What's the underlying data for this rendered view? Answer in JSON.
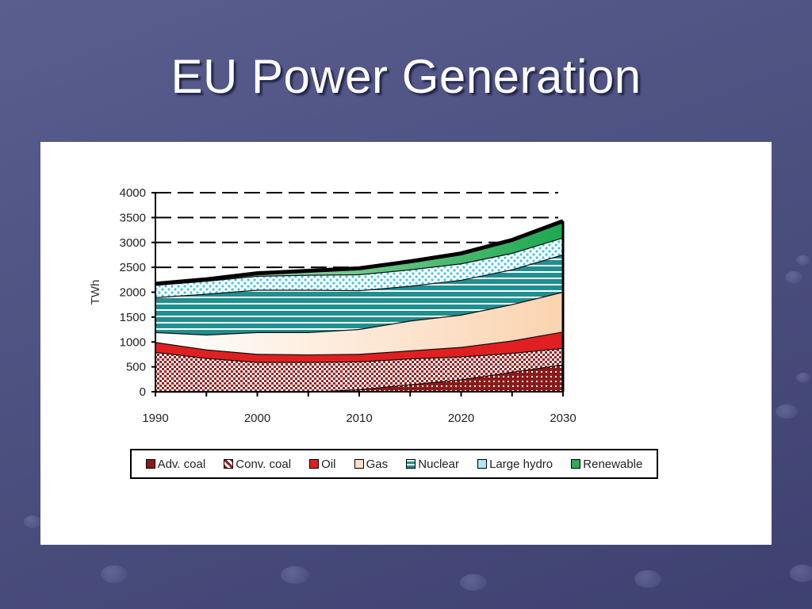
{
  "slide": {
    "title": "EU Power Generation"
  },
  "chart_data": {
    "type": "area",
    "stacked": true,
    "ylabel": "TWh",
    "xlabel": "",
    "ylim": [
      0,
      4000
    ],
    "xlim": [
      1990,
      2030
    ],
    "yticks": [
      0,
      500,
      1000,
      1500,
      2000,
      2500,
      3000,
      3500,
      4000
    ],
    "xticks": [
      1990,
      2000,
      2010,
      2020,
      2030
    ],
    "grid": "dashed horizontal",
    "legend_position": "bottom",
    "x": [
      1990,
      1995,
      2000,
      2005,
      2010,
      2015,
      2020,
      2025,
      2030
    ],
    "series": [
      {
        "name": "Adv. coal",
        "color": "#8b1a1a",
        "values": [
          0,
          0,
          0,
          0,
          50,
          150,
          250,
          400,
          550
        ]
      },
      {
        "name": "Conv. coal",
        "color": "#c07878",
        "values": [
          800,
          680,
          600,
          600,
          560,
          520,
          460,
          380,
          330
        ]
      },
      {
        "name": "Oil",
        "color": "#e02020",
        "values": [
          200,
          170,
          160,
          150,
          150,
          160,
          190,
          250,
          330
        ]
      },
      {
        "name": "Gas",
        "color": "#fce0c8",
        "values": [
          200,
          300,
          440,
          450,
          500,
          600,
          650,
          730,
          800
        ]
      },
      {
        "name": "Nuclear",
        "color": "#2a9a9a",
        "values": [
          700,
          820,
          850,
          850,
          780,
          700,
          700,
          700,
          750
        ]
      },
      {
        "name": "Large hydro",
        "color": "#aee6f5",
        "values": [
          250,
          260,
          280,
          300,
          320,
          330,
          330,
          330,
          340
        ]
      },
      {
        "name": "Renewable",
        "color": "#2eaa5a",
        "values": [
          20,
          30,
          50,
          80,
          120,
          160,
          200,
          260,
          330
        ]
      }
    ]
  },
  "legend": {
    "items": [
      "Adv. coal",
      "Conv. coal",
      "Oil",
      "Gas",
      "Nuclear",
      "Large hydro",
      "Renewable"
    ]
  }
}
